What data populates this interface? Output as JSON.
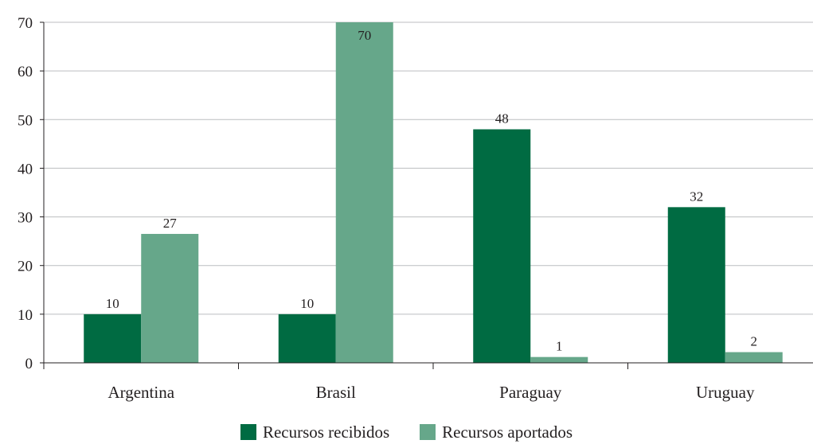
{
  "chart_data": {
    "type": "bar",
    "title": "",
    "xlabel": "",
    "ylabel": "",
    "categories": [
      "Argentina",
      "Brasil",
      "Paraguay",
      "Uruguay"
    ],
    "ylim": [
      0,
      70
    ],
    "yticks": [
      0,
      10,
      20,
      30,
      40,
      50,
      60,
      70
    ],
    "grid": true,
    "legend_position": "bottom",
    "series": [
      {
        "name": "Recursos recibidos",
        "color": "#006b42",
        "values": [
          10,
          10,
          48,
          32
        ],
        "labels": [
          "10",
          "10",
          "48",
          "32"
        ]
      },
      {
        "name": "Recursos aportados",
        "color": "#66a78a",
        "values": [
          26.5,
          70,
          1.2,
          2.2
        ],
        "labels": [
          "27",
          "70",
          "1",
          "2"
        ]
      }
    ]
  }
}
